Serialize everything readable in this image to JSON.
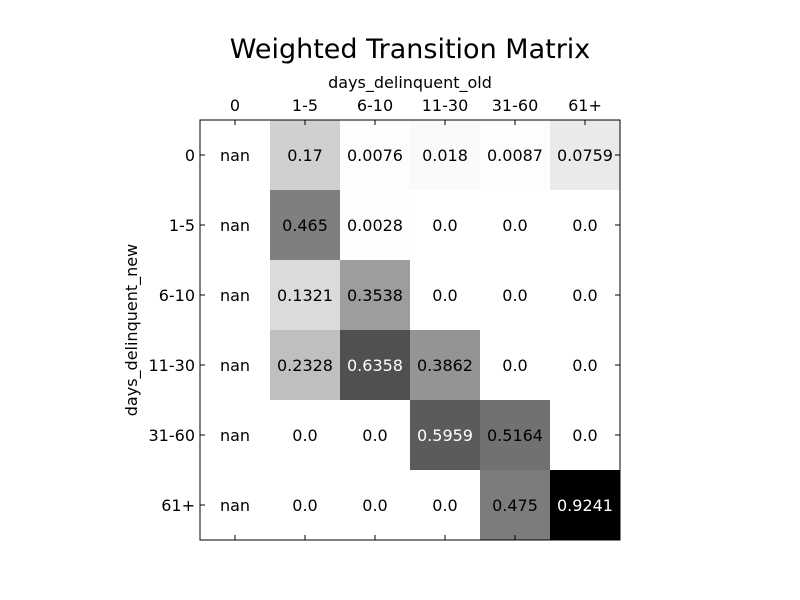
{
  "chart_data": {
    "type": "heatmap",
    "title": "Weighted Transition Matrix",
    "xlabel": "days_delinquent_old",
    "ylabel": "days_delinquent_new",
    "x_categories": [
      "0",
      "1-5",
      "6-10",
      "11-30",
      "31-60",
      "61+"
    ],
    "y_categories": [
      "0",
      "1-5",
      "6-10",
      "11-30",
      "31-60",
      "61+"
    ],
    "values": [
      [
        "nan",
        "0.17",
        "0.0076",
        "0.018",
        "0.0087",
        "0.0759"
      ],
      [
        "nan",
        "0.465",
        "0.0028",
        "0.0",
        "0.0",
        "0.0"
      ],
      [
        "nan",
        "0.1321",
        "0.3538",
        "0.0",
        "0.0",
        "0.0"
      ],
      [
        "nan",
        "0.2328",
        "0.6358",
        "0.3862",
        "0.0",
        "0.0"
      ],
      [
        "nan",
        "0.0",
        "0.0",
        "0.5959",
        "0.5164",
        "0.0"
      ],
      [
        "nan",
        "0.0",
        "0.0",
        "0.0",
        "0.475",
        "0.9241"
      ]
    ],
    "colormap": "greys",
    "vmin": 0,
    "vmax": 0.9241,
    "x_axis_position": "top"
  }
}
